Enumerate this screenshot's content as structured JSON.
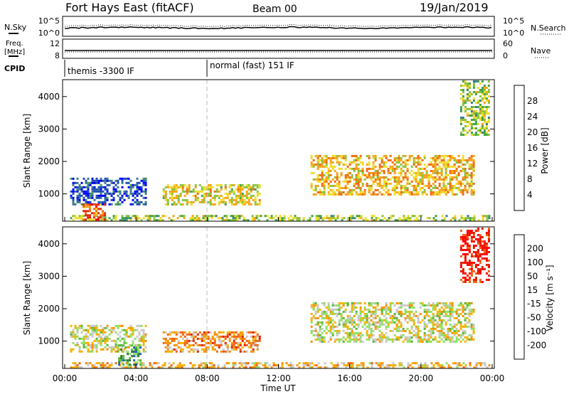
{
  "header": {
    "title": "Fort Hays East (fitACF)",
    "beam": "Beam 00",
    "date": "19/Jan/2019"
  },
  "noise_panel": {
    "left_label": "N.Sky",
    "left_ticks": [
      "10^5",
      "10^0"
    ],
    "right_label": "N.Search",
    "right_ticks": [
      "10^5",
      "10^0"
    ]
  },
  "freq_panel": {
    "left_label_line1": "Freq.",
    "left_label_line2": "[MHz]",
    "left_ticks": [
      "12",
      "8"
    ],
    "right_label": "Nave",
    "right_ticks": [
      "60",
      "0"
    ]
  },
  "cpid_panel": {
    "label": "CPID",
    "segments": [
      {
        "name": "themis -3300 IF",
        "start_hour": 0,
        "end_hour": 8
      },
      {
        "name": "normal (fast) 151 IF",
        "start_hour": 8,
        "end_hour": 24
      }
    ]
  },
  "x_axis": {
    "label": "Time UT",
    "ticks": [
      "00:00",
      "04:00",
      "08:00",
      "12:00",
      "16:00",
      "20:00",
      "00:00"
    ]
  },
  "power_panel": {
    "ylabel": "Slant Range [km]",
    "yticks": [
      "1000",
      "2000",
      "3000",
      "4000"
    ],
    "colorbar_label": "Power [dB]",
    "colorbar_ticks": [
      "4",
      "8",
      "12",
      "16",
      "20",
      "24",
      "28"
    ],
    "colors": [
      "#0000ff",
      "#1e4fb4",
      "#3a7a8a",
      "#42a24a",
      "#88c23a",
      "#f0dc28",
      "#f5a316",
      "#f26a0e",
      "#e02c0a",
      "#ff0000"
    ]
  },
  "velocity_panel": {
    "ylabel": "Slant Range [km]",
    "yticks": [
      "1000",
      "2000",
      "3000",
      "4000"
    ],
    "colorbar_label": "Velocity [m s⁻¹]",
    "colorbar_ticks": [
      "200",
      "100",
      "50",
      "15",
      "-15",
      "-50",
      "-100",
      "-200"
    ],
    "colors": [
      "#0a2a9c",
      "#1a64ba",
      "#2e7a3a",
      "#56b63a",
      "#8ee060",
      "#c8c8c8",
      "#f5b200",
      "#f59000",
      "#f26010",
      "#e02000",
      "#ff0000"
    ]
  },
  "chart_data": {
    "type": "heatmap",
    "x_unit": "hours UT",
    "xlim": [
      0,
      24
    ],
    "ylim": [
      180,
      4500
    ],
    "power_regions": [
      {
        "name": "near-range band",
        "t0": 0.3,
        "t1": 23.8,
        "r0": 200,
        "r1": 350,
        "level": 0.45
      },
      {
        "name": "morning echoes",
        "t0": 0.3,
        "t1": 4.5,
        "r0": 700,
        "r1": 1500,
        "level": 0.15
      },
      {
        "name": "early bright patch",
        "t0": 1.0,
        "t1": 2.2,
        "r0": 200,
        "r1": 700,
        "level": 0.75
      },
      {
        "name": "pre-midnight band",
        "t0": 5.5,
        "t1": 11.0,
        "r0": 650,
        "r1": 1300,
        "level": 0.55
      },
      {
        "name": "evening band",
        "t0": 13.8,
        "t1": 23.0,
        "r0": 1000,
        "r1": 2200,
        "level": 0.62
      },
      {
        "name": "far-range echoes",
        "t0": 22.2,
        "t1": 23.8,
        "r0": 2800,
        "r1": 4500,
        "level": 0.45
      }
    ],
    "velocity_regions": [
      {
        "name": "near-range band",
        "t0": 0.3,
        "t1": 23.8,
        "r0": 200,
        "r1": 350,
        "level": 0.6
      },
      {
        "name": "morning echoes",
        "t0": 0.3,
        "t1": 4.5,
        "r0": 700,
        "r1": 1500,
        "level": 0.5
      },
      {
        "name": "pre-midnight band",
        "t0": 5.5,
        "t1": 11.0,
        "r0": 650,
        "r1": 1300,
        "level": 0.68
      },
      {
        "name": "green patch",
        "t0": 3.0,
        "t1": 4.2,
        "r0": 300,
        "r1": 900,
        "level": 0.3
      },
      {
        "name": "evening band",
        "t0": 13.8,
        "t1": 23.0,
        "r0": 1000,
        "r1": 2200,
        "level": 0.5
      },
      {
        "name": "far-range echoes",
        "t0": 22.2,
        "t1": 23.8,
        "r0": 2800,
        "r1": 4500,
        "level": 0.9
      }
    ]
  }
}
